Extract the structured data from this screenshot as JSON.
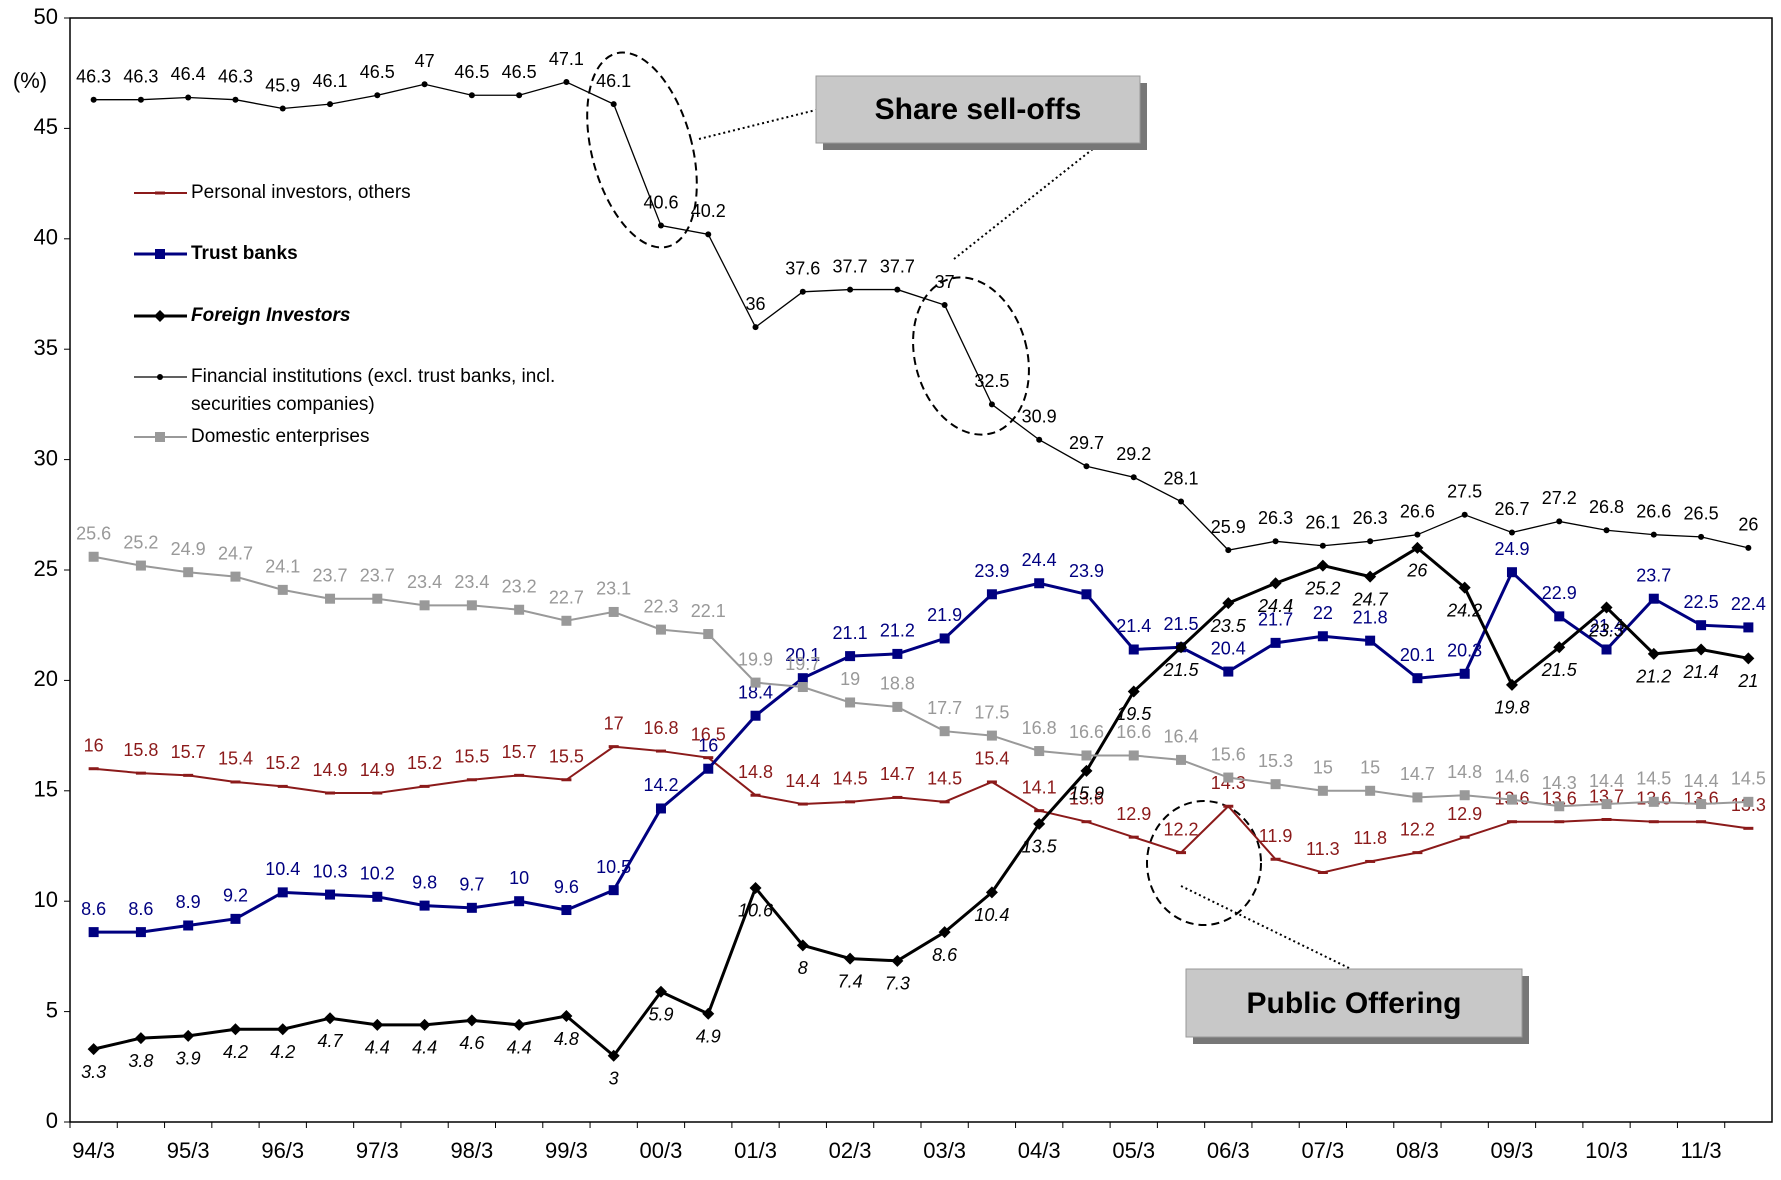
{
  "chart_data": {
    "type": "line",
    "y_unit_label": "(%)",
    "categories": [
      "94/3",
      null,
      "95/3",
      null,
      "96/3",
      null,
      "97/3",
      null,
      "98/3",
      null,
      "99/3",
      null,
      "00/3",
      null,
      "01/3",
      null,
      "02/3",
      null,
      "03/3",
      null,
      "04/3",
      null,
      "05/3",
      null,
      "06/3",
      null,
      "07/3",
      null,
      "08/3",
      null,
      "09/3",
      null,
      "10/3",
      null,
      "11/3",
      null
    ],
    "ylim": [
      0,
      50
    ],
    "yticks": [
      0,
      5,
      10,
      15,
      20,
      25,
      30,
      35,
      40,
      45,
      50
    ],
    "series": [
      {
        "name": "Personal investors, others",
        "color": "#8b1a1a",
        "marker": "dash",
        "values": [
          16.0,
          15.8,
          15.7,
          15.4,
          15.2,
          14.9,
          14.9,
          15.2,
          15.5,
          15.7,
          15.5,
          17.0,
          16.8,
          16.5,
          14.8,
          14.4,
          14.5,
          14.7,
          14.5,
          15.4,
          14.1,
          13.6,
          12.9,
          12.2,
          14.3,
          11.9,
          11.3,
          11.8,
          12.2,
          12.9,
          13.6,
          13.6,
          13.7,
          13.6,
          13.6,
          13.3
        ]
      },
      {
        "name": "Trust banks",
        "color": "#000080",
        "marker": "square",
        "values": [
          8.6,
          8.6,
          8.9,
          9.2,
          10.4,
          10.3,
          10.2,
          9.8,
          9.7,
          10.0,
          9.6,
          10.5,
          14.2,
          16.0,
          18.4,
          20.1,
          21.1,
          21.2,
          21.9,
          23.9,
          24.4,
          23.9,
          21.4,
          21.5,
          20.4,
          21.7,
          22.0,
          21.8,
          20.1,
          20.3,
          24.9,
          22.9,
          21.4,
          23.7,
          22.5,
          22.4
        ]
      },
      {
        "name": "Foreign Investors",
        "color": "#000000",
        "marker": "diamond",
        "values": [
          3.3,
          3.8,
          3.9,
          4.2,
          4.2,
          4.7,
          4.4,
          4.4,
          4.6,
          4.4,
          4.8,
          3.0,
          5.9,
          4.9,
          10.6,
          8.0,
          7.4,
          7.3,
          8.6,
          10.4,
          13.5,
          15.9,
          19.5,
          21.5,
          23.5,
          24.4,
          25.2,
          24.7,
          26.0,
          24.2,
          19.8,
          21.5,
          23.3,
          21.2,
          21.4,
          21.0
        ]
      },
      {
        "name": "Financial institutions (excl. trust banks,  incl. securities companies)",
        "color": "#000000",
        "marker": "circle",
        "values": [
          46.3,
          46.3,
          46.4,
          46.3,
          45.9,
          46.1,
          46.5,
          47.0,
          46.5,
          46.5,
          47.1,
          46.1,
          40.6,
          40.2,
          36.0,
          37.6,
          37.7,
          37.7,
          37.0,
          32.5,
          30.9,
          29.7,
          29.2,
          28.1,
          25.9,
          26.3,
          26.1,
          26.3,
          26.6,
          27.5,
          26.7,
          27.2,
          26.8,
          26.6,
          26.5,
          26.0
        ]
      },
      {
        "name": "Domestic enterprises",
        "color": "#999999",
        "marker": "square",
        "values": [
          25.6,
          25.2,
          24.9,
          24.7,
          24.1,
          23.7,
          23.7,
          23.4,
          23.4,
          23.2,
          22.7,
          23.1,
          22.3,
          22.1,
          19.9,
          19.7,
          19.0,
          18.8,
          17.7,
          17.5,
          16.8,
          16.6,
          16.6,
          16.4,
          15.6,
          15.3,
          15.0,
          15.0,
          14.7,
          14.8,
          14.6,
          14.3,
          14.4,
          14.5,
          14.4,
          14.5
        ]
      }
    ],
    "annotations": [
      "Share sell-offs",
      "Public Offering"
    ]
  }
}
